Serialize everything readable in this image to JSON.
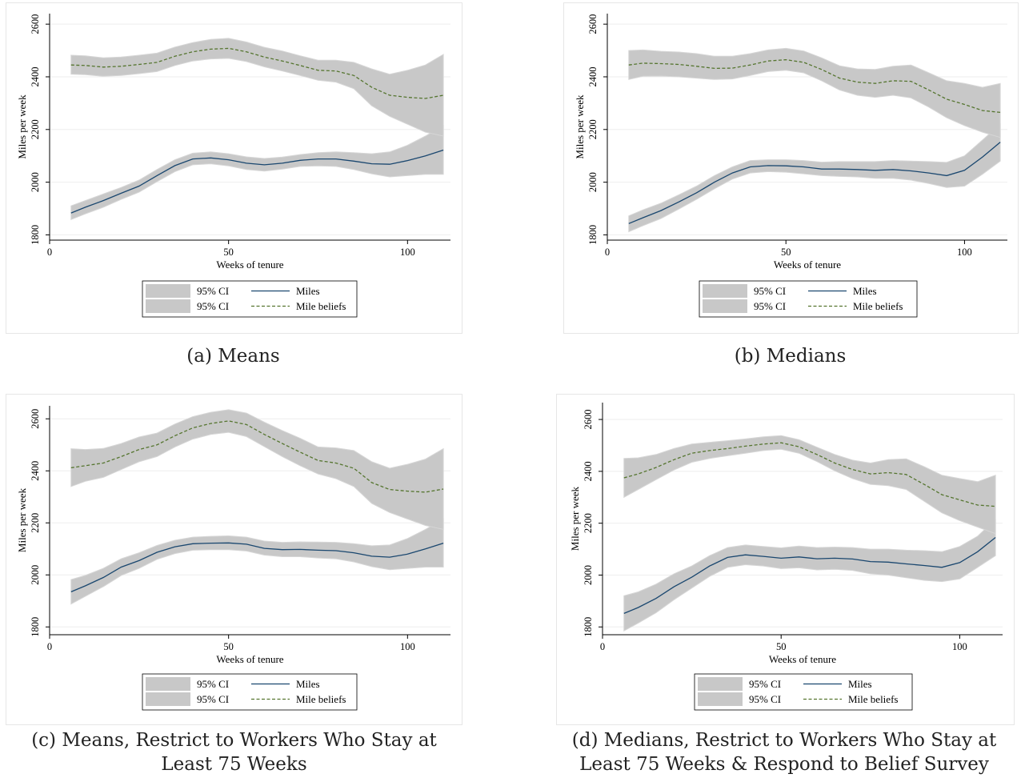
{
  "colors": {
    "miles": "#1a476f",
    "beliefs": "#55752f",
    "band": "#c8c8c8",
    "grid": "#eeeeee"
  },
  "legend": {
    "ci_label": "95% CI",
    "miles_label": "Miles",
    "beliefs_label": "Mile beliefs"
  },
  "chart_data": [
    {
      "id": "a",
      "type": "line",
      "caption": "(a) Means",
      "xlabel": "Weeks of tenure",
      "ylabel": "Miles per week",
      "xlim": [
        0,
        112
      ],
      "ylim": [
        1780,
        2640
      ],
      "xticks": [
        0,
        50,
        100
      ],
      "yticks": [
        1800,
        2000,
        2200,
        2400,
        2600
      ],
      "grid": true,
      "legend_position": "bottom",
      "series": [
        {
          "name": "Miles",
          "x": [
            6,
            10,
            15,
            20,
            25,
            30,
            35,
            40,
            45,
            50,
            55,
            60,
            65,
            70,
            75,
            80,
            85,
            90,
            95,
            100,
            105,
            110
          ],
          "y": [
            1883,
            1905,
            1930,
            1958,
            1985,
            2025,
            2063,
            2088,
            2092,
            2085,
            2072,
            2066,
            2072,
            2083,
            2088,
            2088,
            2080,
            2070,
            2068,
            2082,
            2100,
            2122
          ],
          "lower": [
            1858,
            1880,
            1905,
            1935,
            1962,
            2002,
            2040,
            2066,
            2070,
            2062,
            2048,
            2042,
            2050,
            2060,
            2062,
            2060,
            2048,
            2032,
            2020,
            2025,
            2030,
            2030
          ],
          "upper": [
            1910,
            1930,
            1955,
            1980,
            2008,
            2048,
            2085,
            2110,
            2115,
            2108,
            2096,
            2090,
            2095,
            2105,
            2112,
            2115,
            2112,
            2108,
            2115,
            2140,
            2175,
            2215
          ]
        },
        {
          "name": "Mile beliefs",
          "x": [
            6,
            10,
            15,
            20,
            25,
            30,
            35,
            40,
            45,
            50,
            55,
            60,
            65,
            70,
            75,
            80,
            85,
            90,
            95,
            100,
            105,
            110
          ],
          "y": [
            2445,
            2443,
            2437,
            2440,
            2447,
            2455,
            2478,
            2495,
            2505,
            2508,
            2495,
            2475,
            2460,
            2443,
            2425,
            2422,
            2405,
            2360,
            2330,
            2322,
            2318,
            2330
          ],
          "lower": [
            2410,
            2408,
            2402,
            2405,
            2412,
            2420,
            2443,
            2460,
            2468,
            2470,
            2458,
            2438,
            2422,
            2405,
            2387,
            2380,
            2355,
            2290,
            2250,
            2220,
            2190,
            2175
          ],
          "upper": [
            2482,
            2480,
            2472,
            2475,
            2482,
            2490,
            2513,
            2530,
            2542,
            2546,
            2532,
            2512,
            2498,
            2480,
            2463,
            2463,
            2455,
            2430,
            2410,
            2425,
            2445,
            2485
          ]
        }
      ]
    },
    {
      "id": "b",
      "type": "line",
      "caption": "(b) Medians",
      "xlabel": "Weeks of tenure",
      "ylabel": "Miles per week",
      "xlim": [
        0,
        112
      ],
      "ylim": [
        1780,
        2640
      ],
      "xticks": [
        0,
        50,
        100
      ],
      "yticks": [
        1800,
        2000,
        2200,
        2400,
        2600
      ],
      "grid": true,
      "legend_position": "bottom",
      "series": [
        {
          "name": "Miles",
          "x": [
            6,
            10,
            15,
            20,
            25,
            30,
            35,
            40,
            45,
            50,
            55,
            60,
            65,
            70,
            75,
            80,
            85,
            90,
            95,
            100,
            105,
            110
          ],
          "y": [
            1843,
            1865,
            1892,
            1925,
            1960,
            2000,
            2035,
            2058,
            2063,
            2062,
            2058,
            2050,
            2050,
            2048,
            2045,
            2048,
            2043,
            2035,
            2025,
            2045,
            2095,
            2152
          ],
          "lower": [
            1812,
            1835,
            1862,
            1898,
            1935,
            1975,
            2012,
            2035,
            2040,
            2038,
            2032,
            2025,
            2022,
            2020,
            2015,
            2015,
            2008,
            1995,
            1980,
            1985,
            2030,
            2080
          ],
          "upper": [
            1872,
            1895,
            1920,
            1952,
            1985,
            2025,
            2058,
            2082,
            2085,
            2085,
            2082,
            2076,
            2078,
            2078,
            2078,
            2082,
            2080,
            2078,
            2075,
            2100,
            2160,
            2220
          ]
        },
        {
          "name": "Mile beliefs",
          "x": [
            6,
            10,
            15,
            20,
            25,
            30,
            35,
            40,
            45,
            50,
            55,
            60,
            65,
            70,
            75,
            80,
            85,
            90,
            95,
            100,
            105,
            110
          ],
          "y": [
            2445,
            2452,
            2450,
            2447,
            2440,
            2432,
            2433,
            2445,
            2460,
            2465,
            2455,
            2428,
            2395,
            2380,
            2375,
            2385,
            2383,
            2350,
            2315,
            2295,
            2272,
            2265
          ],
          "lower": [
            2390,
            2402,
            2403,
            2400,
            2395,
            2390,
            2392,
            2405,
            2420,
            2425,
            2415,
            2385,
            2350,
            2330,
            2322,
            2330,
            2320,
            2285,
            2245,
            2215,
            2190,
            2170
          ],
          "upper": [
            2500,
            2502,
            2497,
            2494,
            2488,
            2478,
            2478,
            2488,
            2502,
            2508,
            2498,
            2472,
            2442,
            2430,
            2428,
            2440,
            2445,
            2415,
            2385,
            2375,
            2360,
            2375
          ]
        }
      ]
    },
    {
      "id": "c",
      "type": "line",
      "caption": "(c) Means, Restrict to Workers Who Stay at Least 75 Weeks",
      "xlabel": "Weeks of tenure",
      "ylabel": "Miles per week",
      "xlim": [
        0,
        112
      ],
      "ylim": [
        1770,
        2650
      ],
      "xticks": [
        0,
        50,
        100
      ],
      "yticks": [
        1800,
        2000,
        2200,
        2400,
        2600
      ],
      "grid": true,
      "legend_position": "bottom",
      "series": [
        {
          "name": "Miles",
          "x": [
            6,
            10,
            15,
            20,
            25,
            30,
            35,
            40,
            45,
            50,
            55,
            60,
            65,
            70,
            75,
            80,
            85,
            90,
            95,
            100,
            105,
            110
          ],
          "y": [
            1935,
            1958,
            1990,
            2030,
            2055,
            2087,
            2108,
            2120,
            2122,
            2123,
            2118,
            2102,
            2097,
            2098,
            2095,
            2093,
            2085,
            2072,
            2068,
            2080,
            2100,
            2122
          ],
          "lower": [
            1888,
            1918,
            1955,
            1998,
            2025,
            2060,
            2082,
            2095,
            2097,
            2097,
            2092,
            2076,
            2070,
            2070,
            2065,
            2062,
            2050,
            2032,
            2020,
            2025,
            2030,
            2030
          ],
          "upper": [
            1982,
            1998,
            2025,
            2062,
            2085,
            2113,
            2133,
            2145,
            2148,
            2150,
            2145,
            2130,
            2125,
            2127,
            2126,
            2125,
            2120,
            2112,
            2115,
            2140,
            2175,
            2215
          ]
        },
        {
          "name": "Mile beliefs",
          "x": [
            6,
            10,
            15,
            20,
            25,
            30,
            35,
            40,
            45,
            50,
            55,
            60,
            65,
            70,
            75,
            80,
            85,
            90,
            95,
            100,
            105,
            110
          ],
          "y": [
            2412,
            2420,
            2430,
            2455,
            2482,
            2500,
            2535,
            2565,
            2582,
            2592,
            2578,
            2540,
            2505,
            2472,
            2440,
            2430,
            2410,
            2355,
            2328,
            2322,
            2318,
            2330
          ],
          "lower": [
            2340,
            2360,
            2375,
            2405,
            2435,
            2455,
            2492,
            2522,
            2540,
            2548,
            2532,
            2493,
            2455,
            2420,
            2388,
            2370,
            2340,
            2275,
            2240,
            2215,
            2190,
            2175
          ],
          "upper": [
            2485,
            2482,
            2486,
            2505,
            2530,
            2545,
            2580,
            2608,
            2625,
            2635,
            2622,
            2587,
            2555,
            2525,
            2492,
            2488,
            2478,
            2435,
            2410,
            2425,
            2445,
            2485
          ]
        }
      ]
    },
    {
      "id": "d",
      "type": "line",
      "caption": "(d) Medians, Restrict to Workers Who Stay at Least 75 Weeks & Respond to Belief Survey",
      "xlabel": "Weeks of tenure",
      "ylabel": "Miles per week",
      "xlim": [
        0,
        112
      ],
      "ylim": [
        1770,
        2665
      ],
      "xticks": [
        0,
        50,
        100
      ],
      "yticks": [
        1800,
        2000,
        2200,
        2400,
        2600
      ],
      "grid": true,
      "legend_position": "bottom",
      "series": [
        {
          "name": "Miles",
          "x": [
            6,
            10,
            15,
            20,
            25,
            30,
            35,
            40,
            45,
            50,
            55,
            60,
            65,
            70,
            75,
            80,
            85,
            90,
            95,
            100,
            105,
            110
          ],
          "y": [
            1852,
            1875,
            1910,
            1955,
            1992,
            2035,
            2068,
            2078,
            2072,
            2065,
            2070,
            2063,
            2065,
            2062,
            2052,
            2050,
            2043,
            2037,
            2030,
            2048,
            2090,
            2145
          ],
          "lower": [
            1785,
            1815,
            1855,
            1905,
            1950,
            1995,
            2030,
            2040,
            2035,
            2025,
            2028,
            2020,
            2022,
            2018,
            2005,
            2000,
            1990,
            1980,
            1975,
            1985,
            2030,
            2075
          ],
          "upper": [
            1920,
            1935,
            1965,
            2005,
            2035,
            2075,
            2106,
            2116,
            2110,
            2105,
            2112,
            2106,
            2108,
            2106,
            2100,
            2100,
            2096,
            2094,
            2090,
            2110,
            2150,
            2215
          ]
        },
        {
          "name": "Mile beliefs",
          "x": [
            6,
            10,
            15,
            20,
            25,
            30,
            35,
            40,
            45,
            50,
            55,
            60,
            65,
            70,
            75,
            80,
            85,
            90,
            95,
            100,
            105,
            110
          ],
          "y": [
            2375,
            2390,
            2415,
            2445,
            2470,
            2480,
            2488,
            2497,
            2505,
            2510,
            2495,
            2465,
            2432,
            2407,
            2390,
            2395,
            2388,
            2350,
            2310,
            2290,
            2270,
            2265
          ],
          "lower": [
            2300,
            2330,
            2368,
            2405,
            2435,
            2450,
            2460,
            2470,
            2480,
            2485,
            2470,
            2438,
            2402,
            2372,
            2350,
            2345,
            2330,
            2285,
            2240,
            2210,
            2185,
            2160
          ],
          "upper": [
            2450,
            2452,
            2465,
            2488,
            2505,
            2512,
            2518,
            2525,
            2533,
            2538,
            2522,
            2493,
            2465,
            2443,
            2432,
            2445,
            2448,
            2418,
            2385,
            2372,
            2360,
            2385
          ]
        }
      ]
    }
  ]
}
